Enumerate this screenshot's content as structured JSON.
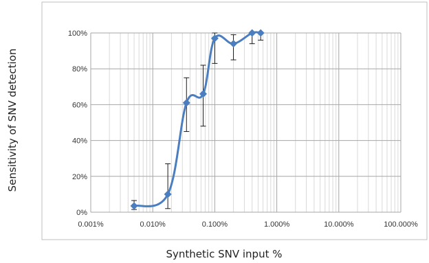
{
  "chart_data": {
    "type": "line",
    "title": "",
    "xlabel": "Synthetic SNV input %",
    "ylabel": "Sensitivity of SNV detection",
    "x_scale": "log",
    "xlim": [
      0.001,
      100
    ],
    "ylim": [
      0,
      100
    ],
    "x_tick_labels": [
      "0.001%",
      "0.010%",
      "0.100%",
      "1.000%",
      "10.000%",
      "100.000%"
    ],
    "y_tick_labels": [
      "0%",
      "20%",
      "40%",
      "60%",
      "80%",
      "100%"
    ],
    "grid": true,
    "legend": "none",
    "series": [
      {
        "color": "#4a7ebf",
        "marker": "diamond",
        "smooth": true,
        "x": [
          0.005,
          0.0175,
          0.035,
          0.065,
          0.1,
          0.2,
          0.4,
          0.55
        ],
        "y": [
          3.5,
          10,
          61,
          66,
          97,
          94,
          100,
          100
        ],
        "err_low": [
          1.5,
          2,
          45,
          48,
          83,
          85,
          94,
          96
        ],
        "err_high": [
          6.5,
          27,
          75,
          82,
          100,
          99,
          100,
          100
        ]
      }
    ]
  }
}
